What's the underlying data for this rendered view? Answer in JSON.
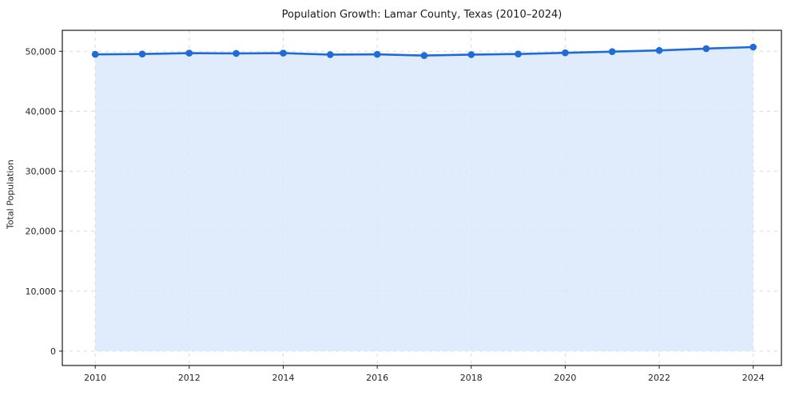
{
  "figure": {
    "background": "#ffffff"
  },
  "chart_data": {
    "type": "area",
    "title": "Population Growth: Lamar County, Texas (2010–2024)",
    "xlabel": "",
    "ylabel": "Total Population",
    "x": [
      2010,
      2011,
      2012,
      2013,
      2014,
      2015,
      2016,
      2017,
      2018,
      2019,
      2020,
      2021,
      2022,
      2023,
      2024
    ],
    "values": [
      49500,
      49550,
      49700,
      49650,
      49700,
      49450,
      49500,
      49300,
      49450,
      49550,
      49750,
      49950,
      50150,
      50450,
      50700
    ],
    "x_ticks": [
      2010,
      2012,
      2014,
      2016,
      2018,
      2020,
      2022,
      2024
    ],
    "y_ticks": [
      0,
      10000,
      20000,
      30000,
      40000,
      50000
    ],
    "y_tick_labels": [
      "0",
      "10,000",
      "20,000",
      "30,000",
      "40,000",
      "50,000"
    ],
    "xlim": [
      2009.3,
      2024.6
    ],
    "ylim": [
      -2400,
      53500
    ],
    "grid": true,
    "grid_style": "dashed",
    "legend": false,
    "marker": "circle",
    "area_baseline": 0,
    "colors": {
      "line": "#1f6bd8",
      "marker": "#1f6bd8",
      "fill": "#dbe8fa",
      "grid": "#d9d9d9",
      "spine": "#1a1a1a",
      "tick_text": "#262626",
      "title_text": "#1a1a1a"
    }
  }
}
